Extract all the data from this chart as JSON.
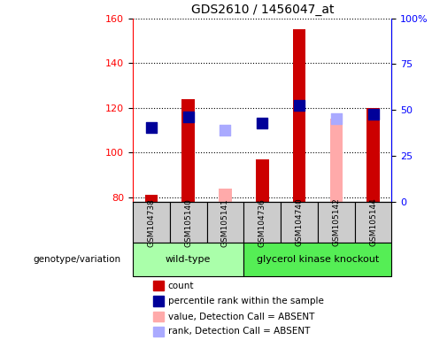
{
  "title": "GDS2610 / 1456047_at",
  "samples": [
    "GSM104738",
    "GSM105140",
    "GSM105141",
    "GSM104736",
    "GSM104740",
    "GSM105142",
    "GSM105144"
  ],
  "groups": {
    "wild-type": [
      0,
      1,
      2
    ],
    "glycerol kinase knockout": [
      3,
      4,
      5,
      6
    ]
  },
  "count_values": [
    81,
    124,
    null,
    97,
    155,
    null,
    120
  ],
  "rank_values": [
    111,
    116,
    null,
    113,
    121,
    null,
    117
  ],
  "absent_value_values": [
    null,
    null,
    84,
    null,
    null,
    115,
    null
  ],
  "absent_rank_values": [
    null,
    null,
    110,
    null,
    null,
    115,
    null
  ],
  "ylim_left": [
    78,
    160
  ],
  "ylim_right": [
    0,
    100
  ],
  "yticks_left": [
    80,
    100,
    120,
    140,
    160
  ],
  "yticks_right": [
    0,
    25,
    50,
    75,
    100
  ],
  "ytick_labels_right": [
    "0",
    "25",
    "50",
    "75",
    "100%"
  ],
  "bar_width": 0.35,
  "marker_size": 80,
  "colors": {
    "count": "#cc0000",
    "rank": "#000099",
    "absent_value": "#ffaaaa",
    "absent_rank": "#aaaaff",
    "wildtype_bg": "#aaffaa",
    "knockout_bg": "#55ee55",
    "sample_bg": "#cccccc",
    "plot_bg": "#ffffff"
  },
  "legend_items": [
    {
      "label": "count",
      "color": "#cc0000"
    },
    {
      "label": "percentile rank within the sample",
      "color": "#000099"
    },
    {
      "label": "value, Detection Call = ABSENT",
      "color": "#ffaaaa"
    },
    {
      "label": "rank, Detection Call = ABSENT",
      "color": "#aaaaff"
    }
  ]
}
